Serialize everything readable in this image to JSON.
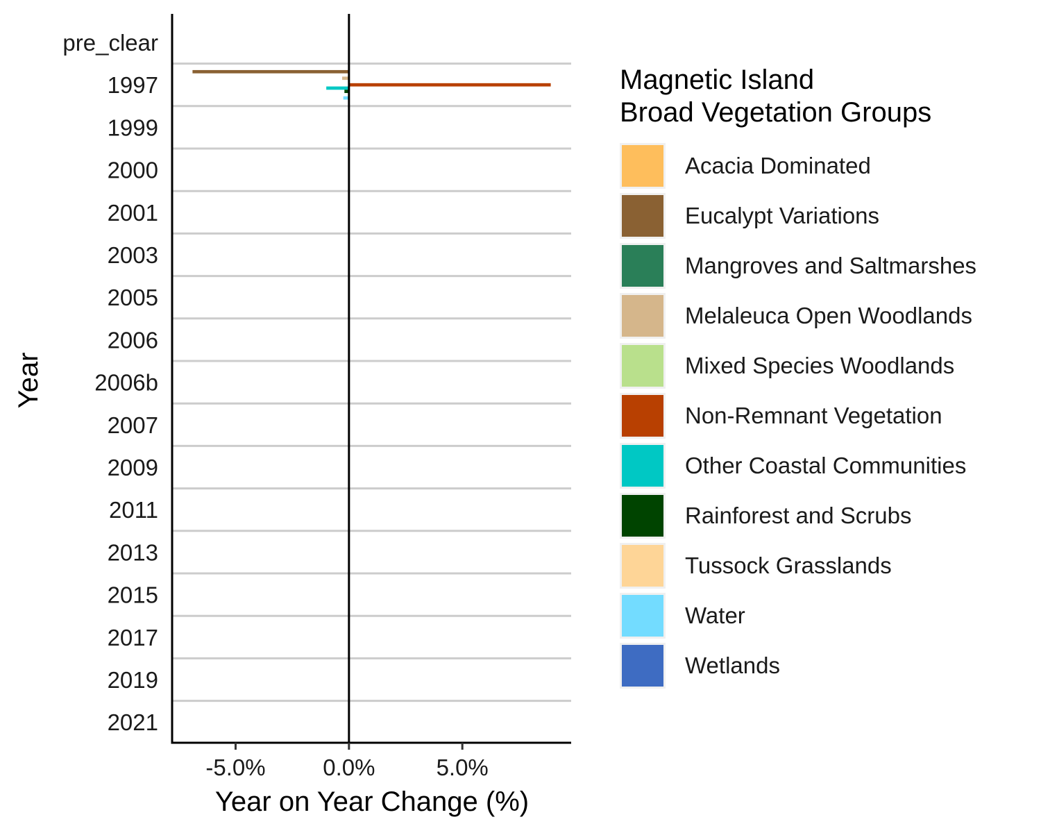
{
  "chart_data": {
    "type": "bar",
    "orientation": "horizontal",
    "title": "",
    "xlabel": "Year on Year Change (%)",
    "ylabel": "Year",
    "xlim": [
      -7.8,
      9.8
    ],
    "x_ticks": [
      "-5.0%",
      "0.0%",
      "5.0%"
    ],
    "x_tick_values": [
      -5,
      0,
      5
    ],
    "categories": [
      "pre_clear",
      "1997",
      "1999",
      "2000",
      "2001",
      "2003",
      "2005",
      "2006",
      "2006b",
      "2007",
      "2009",
      "2011",
      "2013",
      "2015",
      "2017",
      "2019",
      "2021"
    ],
    "grid": "horizontal lines between categories",
    "legend": {
      "title_lines": [
        "Magnetic Island",
        "Broad Vegetation Groups"
      ],
      "position": "right"
    },
    "series": [
      {
        "name": "Acacia Dominated",
        "color": "#FEBE5C",
        "values": [
          null,
          0,
          null,
          null,
          null,
          null,
          null,
          null,
          null,
          null,
          null,
          null,
          null,
          null,
          null,
          null,
          null
        ]
      },
      {
        "name": "Eucalypt Variations",
        "color": "#8A6133",
        "values": [
          null,
          -6.9,
          null,
          null,
          null,
          null,
          null,
          null,
          null,
          null,
          null,
          null,
          null,
          null,
          null,
          null,
          null
        ]
      },
      {
        "name": "Mangroves and Saltmarshes",
        "color": "#2A7F58",
        "values": [
          null,
          0,
          null,
          null,
          null,
          null,
          null,
          null,
          null,
          null,
          null,
          null,
          null,
          null,
          null,
          null,
          null
        ]
      },
      {
        "name": "Melaleuca Open Woodlands",
        "color": "#D5B68B",
        "values": [
          null,
          -0.3,
          null,
          null,
          null,
          null,
          null,
          null,
          null,
          null,
          null,
          null,
          null,
          null,
          null,
          null,
          null
        ]
      },
      {
        "name": "Mixed Species Woodlands",
        "color": "#B9E08C",
        "values": [
          null,
          0,
          null,
          null,
          null,
          null,
          null,
          null,
          null,
          null,
          null,
          null,
          null,
          null,
          null,
          null,
          null
        ]
      },
      {
        "name": "Non-Remnant Vegetation",
        "color": "#B84001",
        "values": [
          null,
          8.9,
          null,
          null,
          null,
          null,
          null,
          null,
          null,
          null,
          null,
          null,
          null,
          null,
          null,
          null,
          null
        ]
      },
      {
        "name": "Other Coastal Communities",
        "color": "#00C8C4",
        "values": [
          null,
          -1.0,
          null,
          null,
          null,
          null,
          null,
          null,
          null,
          null,
          null,
          null,
          null,
          null,
          null,
          null,
          null
        ]
      },
      {
        "name": "Rainforest and Scrubs",
        "color": "#004400",
        "values": [
          null,
          -0.2,
          null,
          null,
          null,
          null,
          null,
          null,
          null,
          null,
          null,
          null,
          null,
          null,
          null,
          null,
          null
        ]
      },
      {
        "name": "Tussock Grasslands",
        "color": "#FED597",
        "values": [
          null,
          0,
          null,
          null,
          null,
          null,
          null,
          null,
          null,
          null,
          null,
          null,
          null,
          null,
          null,
          null,
          null
        ]
      },
      {
        "name": "Water",
        "color": "#73DCFF",
        "values": [
          null,
          -0.25,
          null,
          null,
          null,
          null,
          null,
          null,
          null,
          null,
          null,
          null,
          null,
          null,
          null,
          null,
          null
        ]
      },
      {
        "name": "Wetlands",
        "color": "#3E6CC2",
        "values": [
          null,
          0,
          null,
          null,
          null,
          null,
          null,
          null,
          null,
          null,
          null,
          null,
          null,
          null,
          null,
          null,
          null
        ]
      }
    ]
  }
}
